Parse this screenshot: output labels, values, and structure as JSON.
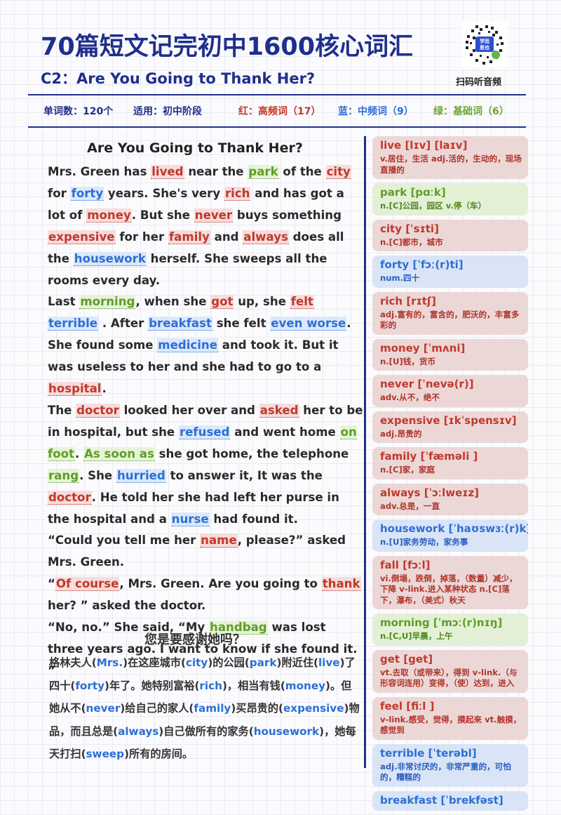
{
  "header": {
    "title": "70篇短文记完初中1600核心词汇",
    "subtitle": "C2：Are You Going to Thank Her?",
    "qr_caption": "扫码听音频",
    "qr_badge_top": "学而",
    "qr_badge_bottom": "思也"
  },
  "meta": {
    "word_count": "单词数：120个",
    "level": "适用：初中阶段",
    "red": "红：高频词（17）",
    "blue": "蓝：中频词（9）",
    "green": "绿：基础词（6）"
  },
  "story": {
    "title": "Are You Going to Thank Her?",
    "paragraphs": [
      [
        {
          "t": "Mrs. Green has "
        },
        {
          "t": "lived",
          "c": "r"
        },
        {
          "t": " near the "
        },
        {
          "t": "park",
          "c": "g"
        },
        {
          "t": " of the "
        },
        {
          "t": "city",
          "c": "r"
        },
        {
          "t": " for "
        },
        {
          "t": "forty",
          "c": "b"
        },
        {
          "t": " years. She's very "
        },
        {
          "t": "rich",
          "c": "r"
        },
        {
          "t": " and has got a lot of "
        },
        {
          "t": "money",
          "c": "r"
        },
        {
          "t": ". But she "
        },
        {
          "t": "never",
          "c": "r"
        },
        {
          "t": " buys something "
        },
        {
          "t": "expensive",
          "c": "r"
        },
        {
          "t": " for her "
        },
        {
          "t": "family",
          "c": "r"
        },
        {
          "t": " and "
        },
        {
          "t": "always",
          "c": "r"
        },
        {
          "t": " does all the "
        },
        {
          "t": "housework",
          "c": "b"
        },
        {
          "t": " herself. She sweeps all the rooms every day."
        }
      ],
      [
        {
          "t": "Last "
        },
        {
          "t": "morning",
          "c": "g"
        },
        {
          "t": ", when she "
        },
        {
          "t": "got",
          "c": "r"
        },
        {
          "t": " up, she "
        },
        {
          "t": "felt",
          "c": "r"
        },
        {
          "t": " "
        },
        {
          "t": "terrible",
          "c": "b"
        },
        {
          "t": " . After "
        },
        {
          "t": "breakfast",
          "c": "b"
        },
        {
          "t": " she felt "
        },
        {
          "t": "even worse",
          "c": "b"
        },
        {
          "t": ". She found some "
        },
        {
          "t": "medicine",
          "c": "b"
        },
        {
          "t": " and took it. But it was useless to her and she had to go to a "
        },
        {
          "t": "hospital",
          "c": "r"
        },
        {
          "t": "."
        }
      ],
      [
        {
          "t": "The "
        },
        {
          "t": "doctor",
          "c": "r"
        },
        {
          "t": " looked her over and "
        },
        {
          "t": "asked",
          "c": "r"
        },
        {
          "t": " her to be in hospital, but she "
        },
        {
          "t": "refused",
          "c": "b"
        },
        {
          "t": " and went home "
        },
        {
          "t": "on foot",
          "c": "g"
        },
        {
          "t": ". "
        },
        {
          "t": "As soon as",
          "c": "g"
        },
        {
          "t": " she got home, the telephone "
        },
        {
          "t": "rang",
          "c": "g"
        },
        {
          "t": ". She "
        },
        {
          "t": "hurried",
          "c": "b"
        },
        {
          "t": " to answer it, It was the "
        },
        {
          "t": "doctor",
          "c": "r"
        },
        {
          "t": ". He told her she had left her purse in the hospital and a "
        },
        {
          "t": "nurse",
          "c": "b"
        },
        {
          "t": " had found it."
        }
      ],
      [
        {
          "t": "“Could you tell me her "
        },
        {
          "t": "name",
          "c": "r"
        },
        {
          "t": ", please?” asked Mrs. Green."
        }
      ],
      [
        {
          "t": "“"
        },
        {
          "t": "Of course",
          "c": "r"
        },
        {
          "t": ", Mrs. Green. Are you going to "
        },
        {
          "t": "thank",
          "c": "r"
        },
        {
          "t": " her? ” asked the doctor."
        }
      ],
      [
        {
          "t": "“No, no.” She said, “My "
        },
        {
          "t": "handbag",
          "c": "g"
        },
        {
          "t": " was lost three years ago. I want to know if she found it. ”"
        }
      ]
    ]
  },
  "translation": {
    "title": "您是要感谢她吗？",
    "segments": [
      {
        "t": "格林夫人("
      },
      {
        "t": "Mrs.",
        "en": true
      },
      {
        "t": ")在这座城市("
      },
      {
        "t": "city",
        "en": true
      },
      {
        "t": ")的公园("
      },
      {
        "t": "park",
        "en": true
      },
      {
        "t": ")附近住("
      },
      {
        "t": "live",
        "en": true
      },
      {
        "t": ")了四十("
      },
      {
        "t": "forty",
        "en": true
      },
      {
        "t": ")年了。她特别富裕("
      },
      {
        "t": "rich",
        "en": true
      },
      {
        "t": ")，相当有钱("
      },
      {
        "t": "money",
        "en": true
      },
      {
        "t": ")。但她从不("
      },
      {
        "t": "never",
        "en": true
      },
      {
        "t": ")给自己的家人("
      },
      {
        "t": "family",
        "en": true
      },
      {
        "t": ")买昂贵的("
      },
      {
        "t": "expensive",
        "en": true
      },
      {
        "t": ")物品，而且总是("
      },
      {
        "t": "always",
        "en": true
      },
      {
        "t": ")自己做所有的家务("
      },
      {
        "t": "housework",
        "en": true
      },
      {
        "t": ")，她每天打扫("
      },
      {
        "t": "sweep",
        "en": true
      },
      {
        "t": ")所有的房间。"
      }
    ]
  },
  "vocab": [
    {
      "word": "live [lɪv] [laɪv]",
      "def": "v.居住，生活 adj.活的，生动的，现场直播的",
      "c": "r"
    },
    {
      "word": "park [pɑːk]",
      "def": "n.[C]公园，园区 v.停（车）",
      "c": "g"
    },
    {
      "word": "city [ˈsɪti]",
      "def": "n.[C]都市，城市",
      "c": "r"
    },
    {
      "word": "forty [ˈfɔː(r)ti]",
      "def": "num.四十",
      "c": "b"
    },
    {
      "word": "rich [rɪtʃ]",
      "def": "adj.富有的，富含的，肥沃的，丰富多彩的",
      "c": "r"
    },
    {
      "word": "money [ˈmʌni]",
      "def": "n.[U]钱，货币",
      "c": "r"
    },
    {
      "word": "never [ˈnevə(r)]",
      "def": "adv.从不，绝不",
      "c": "r"
    },
    {
      "word": "expensive [ɪkˈspensɪv]",
      "def": "adj.昂贵的",
      "c": "r"
    },
    {
      "word": "family [ˈfæməli ]",
      "def": "n.[C]家，家庭",
      "c": "r"
    },
    {
      "word": "always [ˈɔːlweɪz]",
      "def": "adv.总是，一直",
      "c": "r"
    },
    {
      "word": "housework [ˈhaʊswɜː(r)k]",
      "def": "n.[U]家务劳动，家务事",
      "c": "b"
    },
    {
      "word": "fall [fɔːl]",
      "def": "vi.倒塌，跌倒，掉落，（数量）减少，下降 v-link.进入某种状态 n.[C]落下，瀑布，（美式）秋天",
      "c": "r"
    },
    {
      "word": "morning [ˈmɔː(r)nɪŋ]",
      "def": "n.[C,U]早晨，上午",
      "c": "g"
    },
    {
      "word": "get [get]",
      "def": "vt.去取（或带来），得到 v-link.（与形容词连用）变得，（使）达到，进入",
      "c": "r"
    },
    {
      "word": "feel [fiːl ]",
      "def": "v-link.感受，觉得，摸起来 vt.触摸，感觉到",
      "c": "r"
    },
    {
      "word": "terrible [ˈterəbl]",
      "def": "adj.非常讨厌的，非常严重的，可怕的，糟糕的",
      "c": "b"
    },
    {
      "word": "breakfast [ˈbrekfəst]",
      "def": "",
      "c": "b"
    }
  ]
}
